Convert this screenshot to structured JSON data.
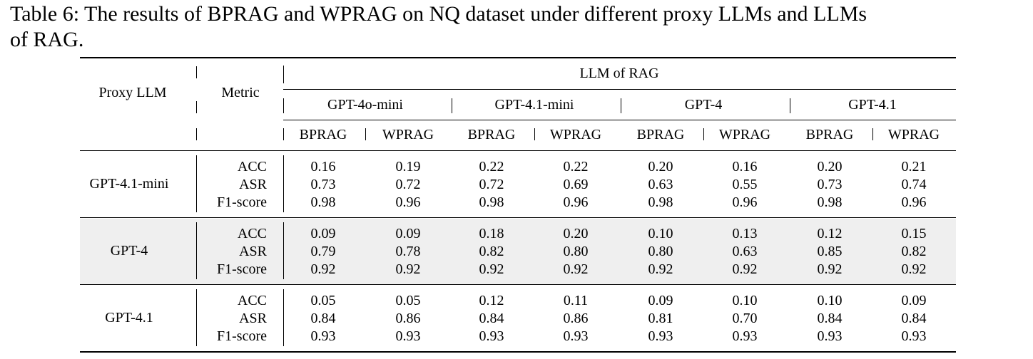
{
  "caption": {
    "line1": "Table 6: The results of BPRAG and WPRAG on NQ dataset under different proxy LLMs and LLMs",
    "line2": "of RAG."
  },
  "header": {
    "proxy_llm": "Proxy LLM",
    "metric": "Metric",
    "llm_of_rag": "LLM of RAG",
    "models": [
      "GPT-4o-mini",
      "GPT-4.1-mini",
      "GPT-4",
      "GPT-4.1"
    ],
    "methods": [
      "BPRAG",
      "WPRAG",
      "BPRAG",
      "WPRAG",
      "BPRAG",
      "WPRAG",
      "BPRAG",
      "WPRAG"
    ]
  },
  "groups": [
    {
      "proxy": "GPT-4.1-mini",
      "shaded": false,
      "rows": [
        {
          "metric": "ACC",
          "values": [
            "0.16",
            "0.19",
            "0.22",
            "0.22",
            "0.20",
            "0.16",
            "0.20",
            "0.21"
          ]
        },
        {
          "metric": "ASR",
          "values": [
            "0.73",
            "0.72",
            "0.72",
            "0.69",
            "0.63",
            "0.55",
            "0.73",
            "0.74"
          ]
        },
        {
          "metric": "F1-score",
          "values": [
            "0.98",
            "0.96",
            "0.98",
            "0.96",
            "0.98",
            "0.96",
            "0.98",
            "0.96"
          ]
        }
      ]
    },
    {
      "proxy": "GPT-4",
      "shaded": true,
      "rows": [
        {
          "metric": "ACC",
          "values": [
            "0.09",
            "0.09",
            "0.18",
            "0.20",
            "0.10",
            "0.13",
            "0.12",
            "0.15"
          ]
        },
        {
          "metric": "ASR",
          "values": [
            "0.79",
            "0.78",
            "0.82",
            "0.80",
            "0.80",
            "0.63",
            "0.85",
            "0.82"
          ]
        },
        {
          "metric": "F1-score",
          "values": [
            "0.92",
            "0.92",
            "0.92",
            "0.92",
            "0.92",
            "0.92",
            "0.92",
            "0.92"
          ]
        }
      ]
    },
    {
      "proxy": "GPT-4.1",
      "shaded": false,
      "rows": [
        {
          "metric": "ACC",
          "values": [
            "0.05",
            "0.05",
            "0.12",
            "0.11",
            "0.09",
            "0.10",
            "0.10",
            "0.09"
          ]
        },
        {
          "metric": "ASR",
          "values": [
            "0.84",
            "0.86",
            "0.84",
            "0.86",
            "0.81",
            "0.70",
            "0.84",
            "0.84"
          ]
        },
        {
          "metric": "F1-score",
          "values": [
            "0.93",
            "0.93",
            "0.93",
            "0.93",
            "0.93",
            "0.93",
            "0.93",
            "0.93"
          ]
        }
      ]
    }
  ]
}
